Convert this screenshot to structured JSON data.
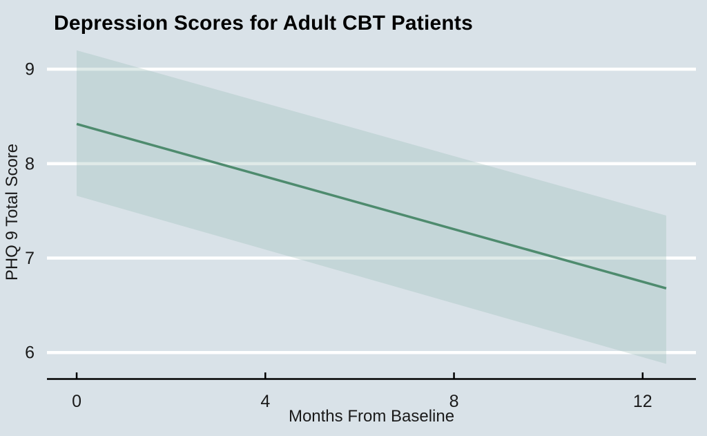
{
  "figure": {
    "title": "Depression Scores for Adult CBT Patients"
  },
  "colors": {
    "background": "#d9e2e8",
    "gridline": "#ffffff",
    "trend_line": "#4e8b6e",
    "ribbon_fill": "#96b9b2",
    "ribbon_opacity": 0.3,
    "axis": "#000000",
    "text": "#1a1a1a",
    "title": "#000000"
  },
  "chart_data": {
    "type": "line",
    "title": "Depression Scores for Adult CBT Patients",
    "xlabel": "Months From Baseline",
    "ylabel": "PHQ 9 Total Score",
    "x": [
      0,
      12.5
    ],
    "series": [
      {
        "name": "fitted-depression-trend",
        "values": [
          8.42,
          6.68
        ]
      }
    ],
    "ribbon": {
      "name": "confidence-interval-band",
      "x": [
        0,
        12.5
      ],
      "upper": [
        9.2,
        7.45
      ],
      "lower": [
        7.66,
        5.88
      ]
    },
    "xticks": [
      0,
      4,
      8,
      12
    ],
    "yticks": [
      6,
      7,
      8,
      9
    ],
    "xlim": [
      -0.63,
      13.13
    ],
    "ylim": [
      5.72,
      9.25
    ],
    "grid": {
      "horizontal": true,
      "vertical": false
    },
    "legend": "none"
  }
}
